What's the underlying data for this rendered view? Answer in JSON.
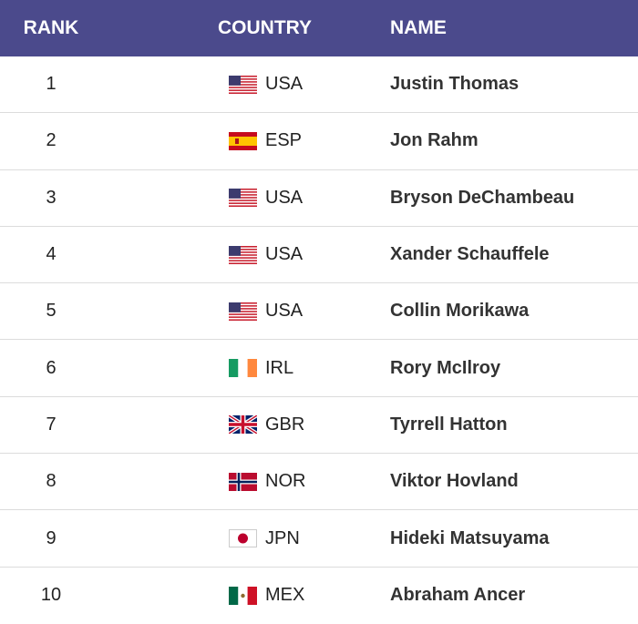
{
  "table": {
    "columns": [
      "RANK",
      "COUNTRY",
      "NAME"
    ],
    "rows": [
      [
        "1",
        "USA",
        "Justin Thomas"
      ],
      [
        "2",
        "ESP",
        "Jon Rahm"
      ],
      [
        "3",
        "USA",
        "Bryson DeChambeau"
      ],
      [
        "4",
        "USA",
        "Xander Schauffele"
      ],
      [
        "5",
        "USA",
        "Collin Morikawa"
      ],
      [
        "6",
        "IRL",
        "Rory McIlroy"
      ],
      [
        "7",
        "GBR",
        "Tyrrell Hatton"
      ],
      [
        "8",
        "NOR",
        "Viktor Hovland"
      ],
      [
        "9",
        "JPN",
        "Hideki Matsuyama"
      ],
      [
        "10",
        "MEX",
        "Abraham Ancer"
      ]
    ]
  }
}
